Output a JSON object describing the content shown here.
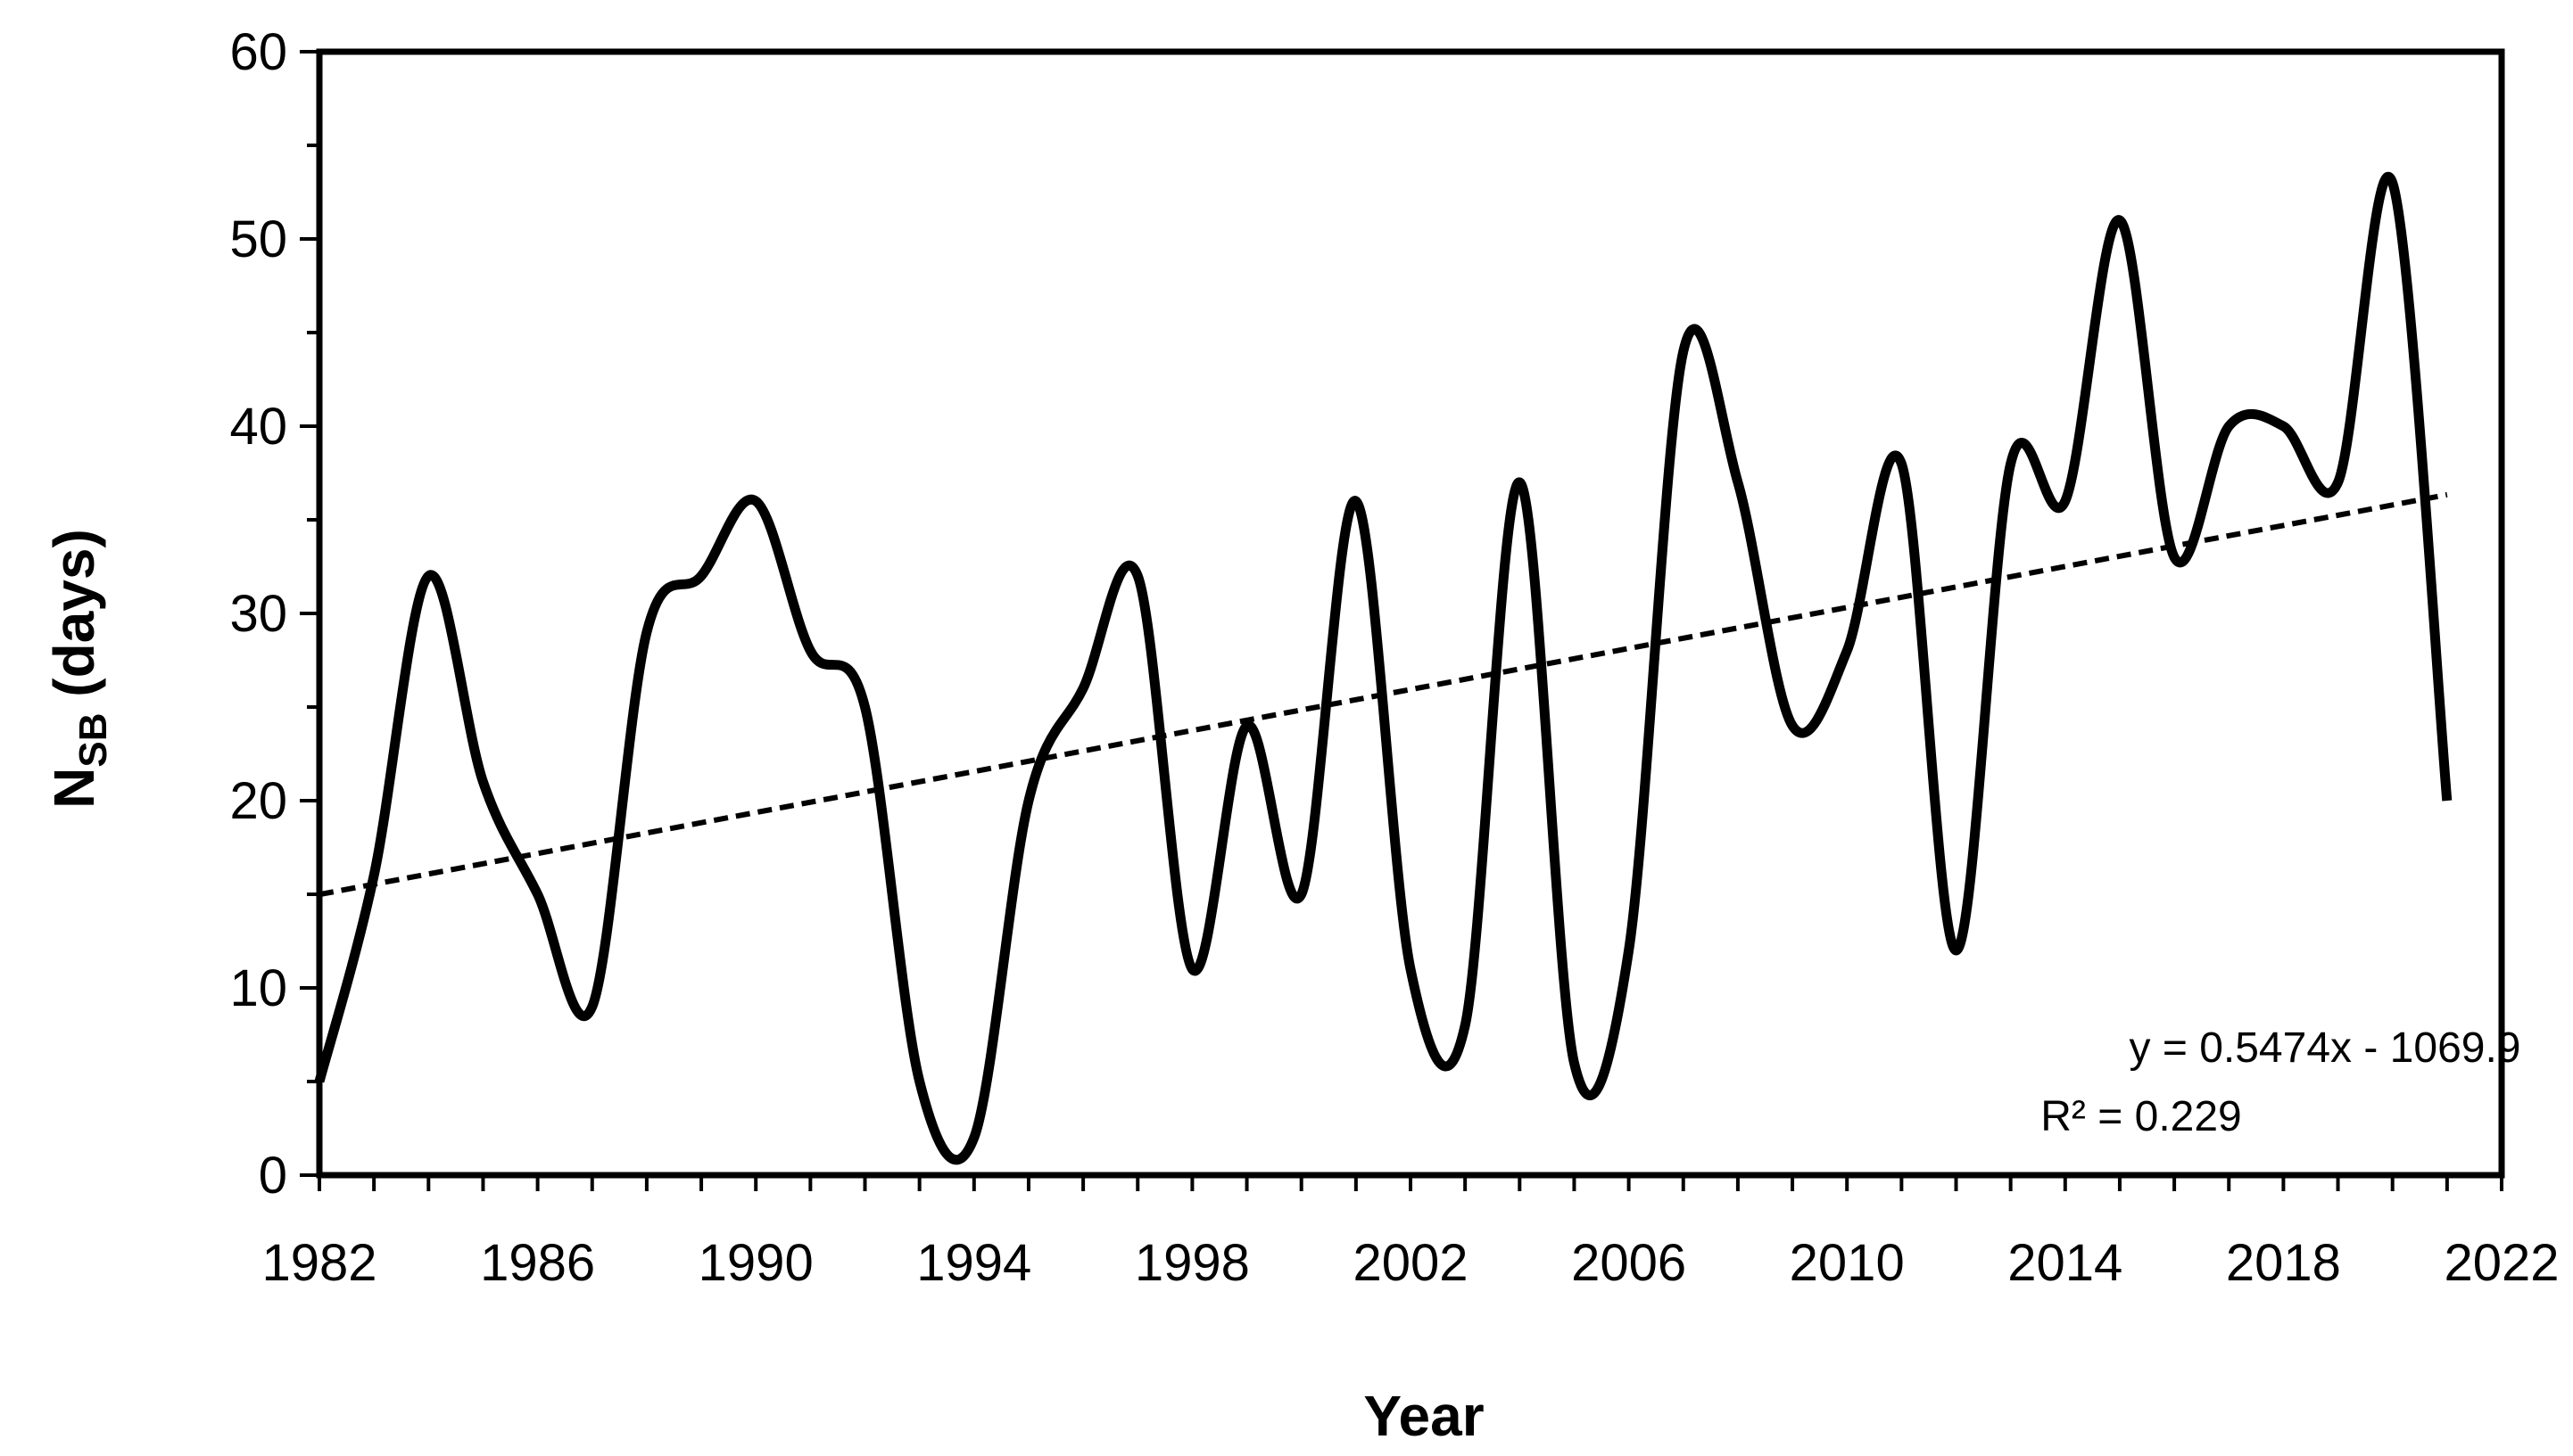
{
  "chart_data": {
    "type": "line",
    "title": "",
    "xlabel": "Year",
    "ylabel": {
      "main": "N",
      "subscript": "SB",
      "suffix": " (days)"
    },
    "xlim": [
      1982,
      2022
    ],
    "ylim": [
      0,
      60
    ],
    "xticks": [
      "1982",
      "1986",
      "1990",
      "1994",
      "1998",
      "2002",
      "2006",
      "2010",
      "2014",
      "2018",
      "2022"
    ],
    "yticks": [
      "0",
      "10",
      "20",
      "30",
      "40",
      "50",
      "60"
    ],
    "grid": false,
    "legend": "none",
    "series": [
      {
        "style": "solid",
        "x": [
          1982,
          1983,
          1984,
          1985,
          1986,
          1987,
          1988,
          1989,
          1990,
          1991,
          1992,
          1993,
          1994,
          1995,
          1996,
          1997,
          1998,
          1999,
          2000,
          2001,
          2002,
          2003,
          2004,
          2005,
          2006,
          2007,
          2008,
          2009,
          2010,
          2011,
          2012,
          2013,
          2014,
          2015,
          2016,
          2017,
          2018,
          2019,
          2020,
          2021
        ],
        "y": [
          5,
          16,
          32,
          21,
          15,
          9,
          29,
          32,
          36,
          28,
          25,
          5,
          2,
          20,
          26,
          32,
          11,
          24,
          15,
          36,
          11,
          8,
          37,
          6,
          12,
          44,
          37,
          24,
          28,
          38,
          12,
          38,
          36,
          51,
          33,
          40,
          40,
          37,
          53,
          20
        ]
      },
      {
        "style": "dashed",
        "trendline": true,
        "slope": 0.5474,
        "intercept": -1069.9,
        "x": [
          1982,
          2021
        ],
        "y": [
          14.99,
          36.34
        ]
      }
    ],
    "annotations": {
      "equation": "y = 0.5474x - 1069.9",
      "r_squared": "R² = 0.229"
    }
  }
}
